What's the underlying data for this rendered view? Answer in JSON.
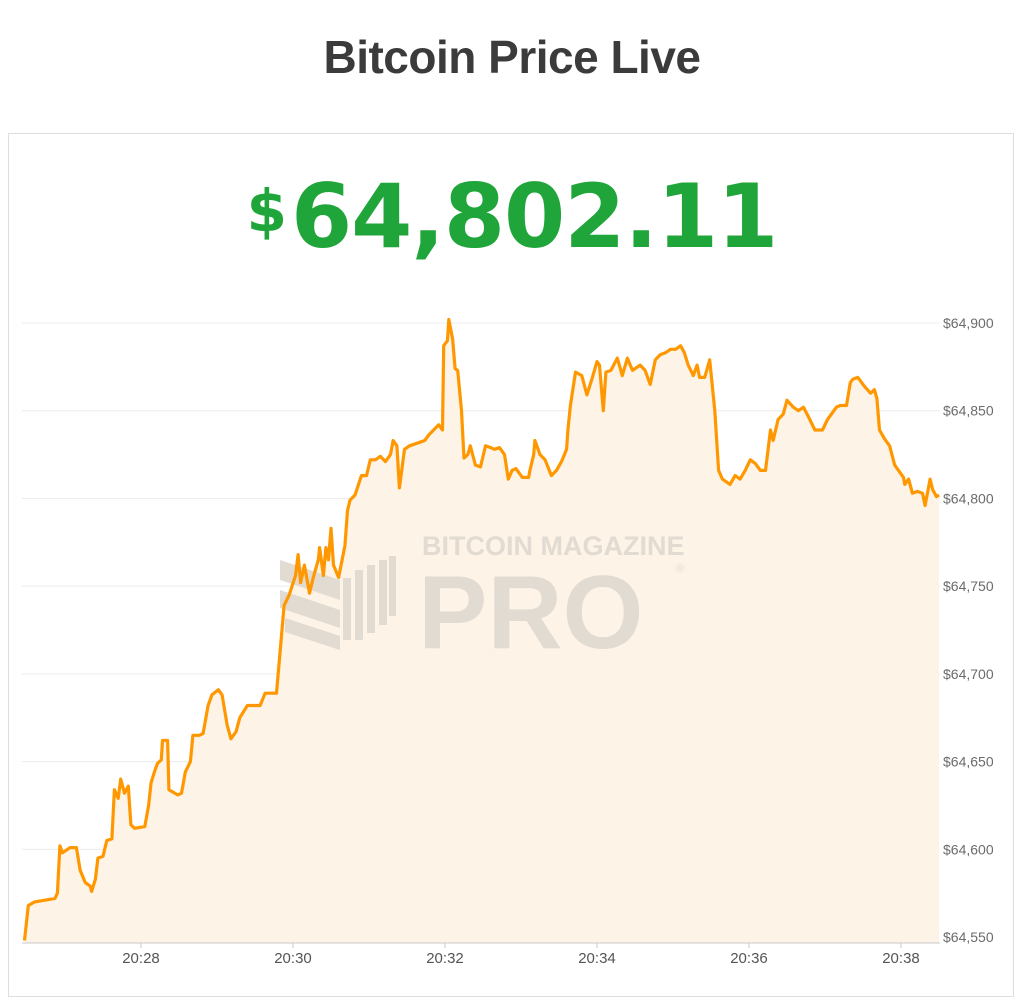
{
  "header": {
    "title": "Bitcoin Price Live"
  },
  "price": {
    "currency_symbol": "$",
    "value": "64,802.11",
    "color": "#1fa53a"
  },
  "watermark": {
    "line1": "BITCOIN MAGAZINE",
    "line2": "PRO",
    "mark": "®"
  },
  "chart_data": {
    "type": "area",
    "title": "",
    "xlabel": "",
    "ylabel": "",
    "x_ticks": [
      "20:28",
      "20:30",
      "20:32",
      "20:34",
      "20:36",
      "20:38"
    ],
    "y_ticks": [
      "$64,550",
      "$64,600",
      "$64,650",
      "$64,700",
      "$64,750",
      "$64,800",
      "$64,850",
      "$64,900"
    ],
    "y_tick_values": [
      64550,
      64600,
      64650,
      64700,
      64750,
      64800,
      64850,
      64900
    ],
    "xlim": [
      "20:26:28",
      "20:38:31"
    ],
    "ylim": [
      64547,
      64910
    ],
    "y_axis_position": "right",
    "grid": true,
    "line_color": "#ff9800",
    "fill_color": "#fdf3e7",
    "series": [
      {
        "x": [
          "20:26:28",
          "20:26:31",
          "20:26:36",
          "20:26:44",
          "20:26:52",
          "20:26:54",
          "20:26:56",
          "20:26:58",
          "20:27:04",
          "20:27:09",
          "20:27:12",
          "20:27:16",
          "20:27:20",
          "20:27:21",
          "20:27:24",
          "20:27:26",
          "20:27:30",
          "20:27:33",
          "20:27:37",
          "20:27:39",
          "20:27:42",
          "20:27:44",
          "20:27:47",
          "20:27:50",
          "20:27:52",
          "20:27:55",
          "20:28:03",
          "20:28:06",
          "20:28:08",
          "20:28:11",
          "20:28:13",
          "20:28:16",
          "20:28:17",
          "20:28:21",
          "20:28:22",
          "20:28:29",
          "20:28:32",
          "20:28:35",
          "20:28:39",
          "20:28:41",
          "20:28:46",
          "20:28:49",
          "20:28:53",
          "20:28:56",
          "20:29:01",
          "20:29:04",
          "20:29:08",
          "20:29:11",
          "20:29:15",
          "20:29:18",
          "20:29:24",
          "20:29:34",
          "20:29:38",
          "20:29:47",
          "20:29:50",
          "20:29:53",
          "20:29:57",
          "20:30:02",
          "20:30:04",
          "20:30:06",
          "20:30:09",
          "20:30:13",
          "20:30:16",
          "20:30:20",
          "20:30:21",
          "20:30:24",
          "20:30:26",
          "20:30:28",
          "20:30:30",
          "20:30:32",
          "20:30:36",
          "20:30:41",
          "20:30:43",
          "20:30:45",
          "20:30:49",
          "20:30:54",
          "20:30:58",
          "20:31:01",
          "20:31:05",
          "20:31:09",
          "20:31:13",
          "20:31:17",
          "20:31:19",
          "20:31:22",
          "20:31:24",
          "20:31:28",
          "20:31:32",
          "20:31:40",
          "20:31:44",
          "20:31:47",
          "20:31:55",
          "20:31:58",
          "20:31:59",
          "20:32:02",
          "20:32:03",
          "20:32:06",
          "20:32:08",
          "20:32:10",
          "20:32:13",
          "20:32:15",
          "20:32:18",
          "20:32:20",
          "20:32:24",
          "20:32:28",
          "20:32:32",
          "20:32:36",
          "20:32:39",
          "20:32:43",
          "20:32:47",
          "20:32:50",
          "20:32:53",
          "20:32:56",
          "20:33:01",
          "20:33:06",
          "20:33:07",
          "20:33:10",
          "20:33:11",
          "20:33:15",
          "20:33:19",
          "20:33:24",
          "20:33:28",
          "20:33:32",
          "20:33:36",
          "20:33:37",
          "20:33:39",
          "20:33:43",
          "20:33:48",
          "20:33:52",
          "20:33:56",
          "20:34:00",
          "20:34:02",
          "20:34:05",
          "20:34:07",
          "20:34:11",
          "20:34:16",
          "20:34:20",
          "20:34:24",
          "20:34:28",
          "20:34:34",
          "20:34:38",
          "20:34:42",
          "20:34:46",
          "20:34:50",
          "20:34:54",
          "20:34:58",
          "20:35:02",
          "20:35:06",
          "20:35:09",
          "20:35:12",
          "20:35:16",
          "20:35:19",
          "20:35:21",
          "20:35:25",
          "20:35:29",
          "20:35:33",
          "20:35:36",
          "20:35:39",
          "20:35:45",
          "20:35:49",
          "20:35:53",
          "20:35:57",
          "20:36:01",
          "20:36:05",
          "20:36:09",
          "20:36:13",
          "20:36:17",
          "20:36:19",
          "20:36:23",
          "20:36:27",
          "20:36:30",
          "20:36:35",
          "20:36:39",
          "20:36:43",
          "20:36:48",
          "20:36:52",
          "20:36:58",
          "20:37:02",
          "20:37:06",
          "20:37:09",
          "20:37:12",
          "20:37:17",
          "20:37:20",
          "20:37:22",
          "20:37:26",
          "20:37:31",
          "20:37:36",
          "20:37:39",
          "20:37:41",
          "20:37:43",
          "20:37:47",
          "20:37:51",
          "20:37:55",
          "20:37:58",
          "20:38:02",
          "20:38:03",
          "20:38:06",
          "20:38:09",
          "20:38:13",
          "20:38:17",
          "20:38:19",
          "20:38:23",
          "20:38:25",
          "20:38:28",
          "20:38:30"
        ],
        "y": [
          64548,
          64568,
          64570,
          64571,
          64572,
          64575,
          64602,
          64598,
          64601,
          64601,
          64588,
          64581,
          64579,
          64576,
          64583,
          64595,
          64596,
          64605,
          64606,
          64634,
          64629,
          64640,
          64632,
          64636,
          64614,
          64612,
          64613,
          64625,
          64638,
          64645,
          64649,
          64651,
          64662,
          64662,
          64634,
          64631,
          64632,
          64644,
          64650,
          64665,
          64665,
          64666,
          64682,
          64688,
          64691,
          64688,
          64671,
          64663,
          64667,
          64675,
          64682,
          64682,
          64689,
          64689,
          64714,
          64739,
          64745,
          64756,
          64768,
          64752,
          64762,
          64746,
          64755,
          64765,
          64772,
          64756,
          64772,
          64765,
          64783,
          64762,
          64755,
          64773,
          64793,
          64799,
          64802,
          64813,
          64813,
          64822,
          64822,
          64824,
          64821,
          64825,
          64833,
          64830,
          64806,
          64828,
          64830,
          64832,
          64833,
          64836,
          64842,
          64839,
          64887,
          64890,
          64902,
          64891,
          64874,
          64873,
          64850,
          64823,
          64825,
          64830,
          64819,
          64818,
          64830,
          64829,
          64828,
          64829,
          64825,
          64811,
          64816,
          64817,
          64812,
          64812,
          64816,
          64825,
          64833,
          64825,
          64822,
          64813,
          64816,
          64821,
          64828,
          64839,
          64853,
          64872,
          64870,
          64859,
          64868,
          64878,
          64876,
          64850,
          64872,
          64873,
          64880,
          64870,
          64880,
          64873,
          64876,
          64873,
          64865,
          64879,
          64882,
          64883,
          64885,
          64885,
          64887,
          64883,
          64876,
          64870,
          64876,
          64869,
          64869,
          64879,
          64850,
          64816,
          64811,
          64808,
          64813,
          64811,
          64816,
          64822,
          64820,
          64816,
          64816,
          64839,
          64833,
          64845,
          64848,
          64856,
          64852,
          64850,
          64852,
          64845,
          64839,
          64839,
          64845,
          64849,
          64852,
          64853,
          64853,
          64866,
          64868,
          64869,
          64864,
          64860,
          64862,
          64857,
          64839,
          64834,
          64830,
          64819,
          64816,
          64812,
          64808,
          64811,
          64803,
          64804,
          64803,
          64796,
          64811,
          64805,
          64801,
          64802
        ]
      }
    ]
  }
}
